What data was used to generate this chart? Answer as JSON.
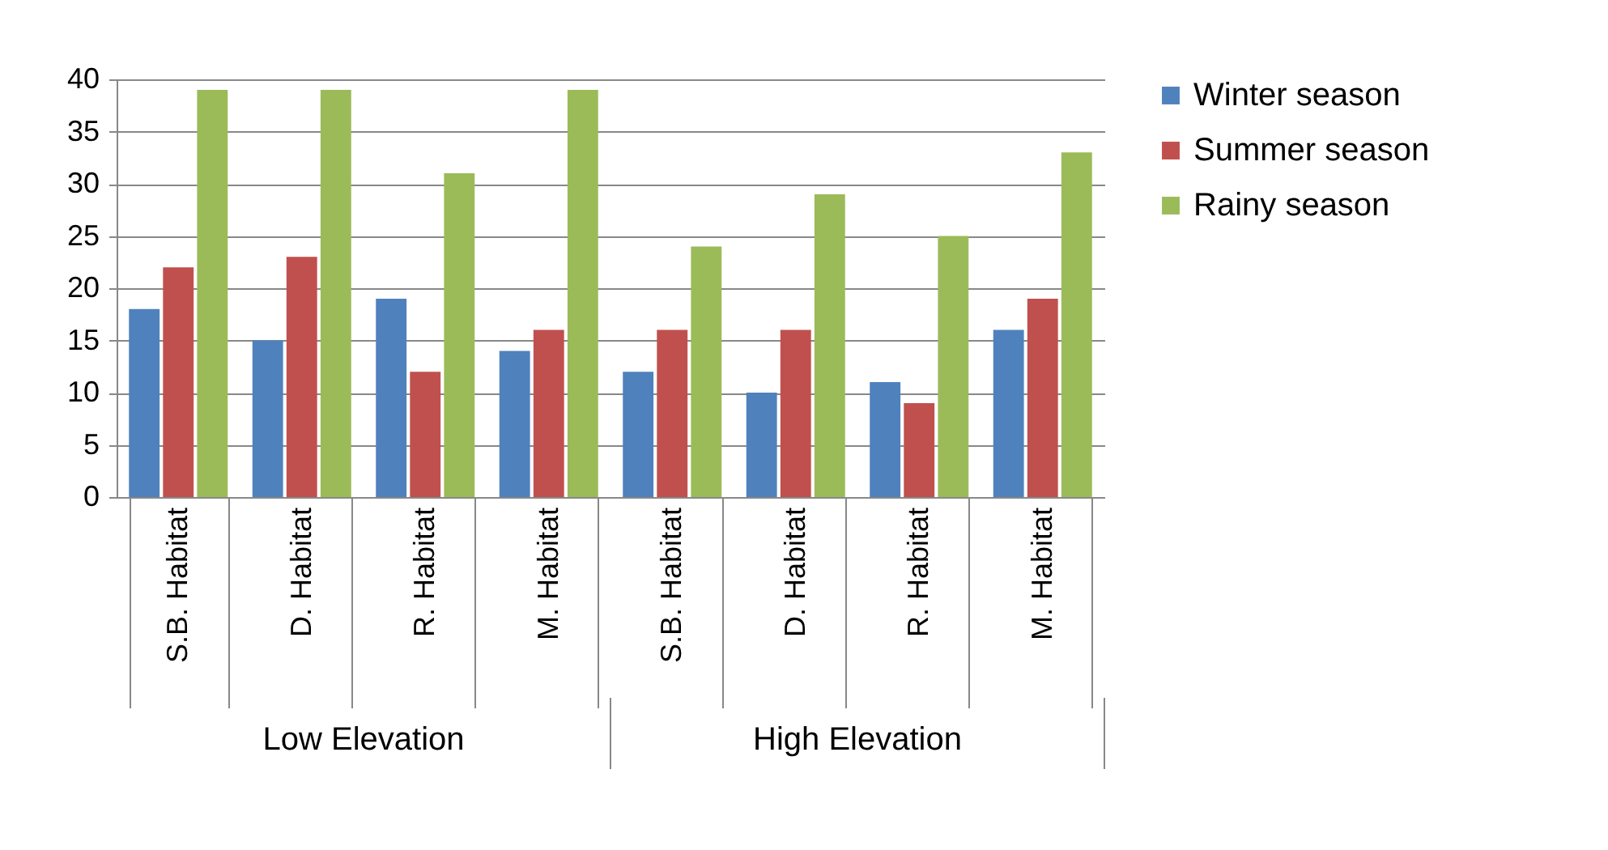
{
  "chart_data": {
    "type": "bar",
    "categories": [
      "S.B. Habitat",
      "D. Habitat",
      "R. Habitat",
      "M. Habitat",
      "S.B. Habitat",
      "D. Habitat",
      "R. Habitat",
      "M. Habitat"
    ],
    "series": [
      {
        "name": "Winter season",
        "color": "#4f81bd",
        "values": [
          18,
          15,
          19,
          14,
          12,
          10,
          11,
          16
        ]
      },
      {
        "name": "Summer season",
        "color": "#c0504d",
        "values": [
          22,
          23,
          12,
          16,
          16,
          16,
          9,
          19
        ]
      },
      {
        "name": "Rainy season",
        "color": "#9bbb59",
        "values": [
          39,
          39,
          31,
          39,
          24,
          29,
          25,
          33
        ]
      }
    ],
    "ylim": [
      0,
      40
    ],
    "yticks": [
      0,
      5,
      10,
      15,
      20,
      25,
      30,
      35,
      40
    ],
    "grid": "y",
    "legend": "right",
    "annotations": [
      "Low Elevation",
      "High Elevation"
    ]
  }
}
